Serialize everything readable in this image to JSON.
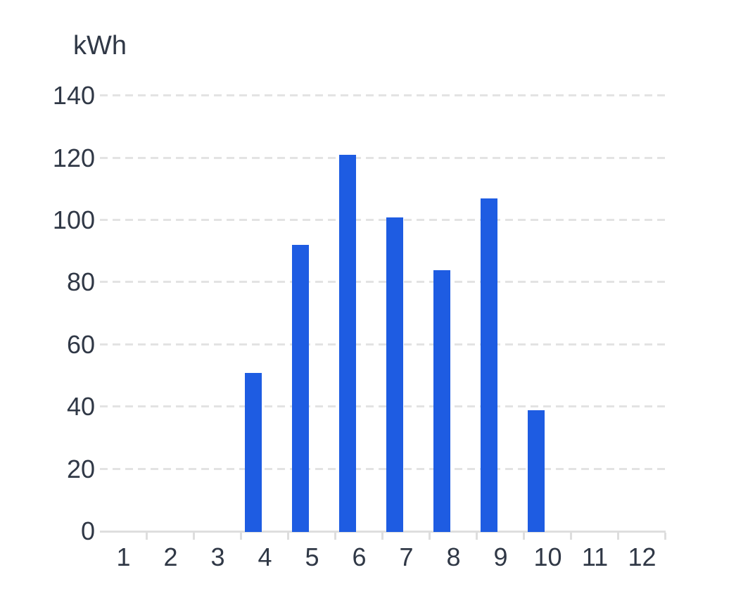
{
  "chart_data": {
    "type": "bar",
    "title": "",
    "ylabel": "kWh",
    "xlabel": "",
    "categories": [
      "1",
      "2",
      "3",
      "4",
      "5",
      "6",
      "7",
      "8",
      "9",
      "10",
      "11",
      "12"
    ],
    "values": [
      0,
      0,
      0,
      51,
      92,
      121,
      101,
      84,
      107,
      39,
      0,
      0
    ],
    "yticks": [
      0,
      20,
      40,
      60,
      80,
      100,
      120,
      140
    ],
    "ylim": [
      0,
      140
    ],
    "grid": "horizontal-dashed",
    "legend_position": "none",
    "colors": {
      "bar": "#1E5CE2",
      "label": "#303846",
      "gridline": "#E3E3E3",
      "axis": "#DEDEDE",
      "background": "#FFFFFF"
    }
  }
}
